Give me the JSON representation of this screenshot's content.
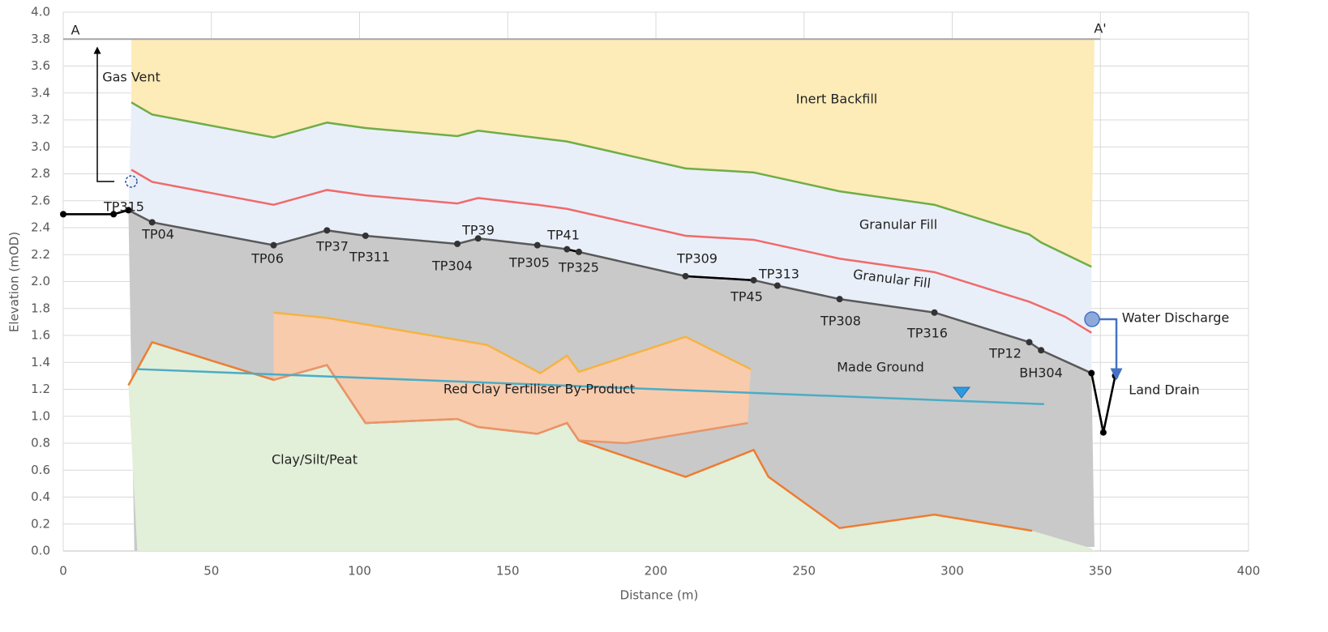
{
  "chart_data": {
    "type": "line",
    "xlabel": "Distance (m)",
    "ylabel": "Elevation (mOD)",
    "xlim": [
      0,
      400
    ],
    "ylim": [
      0,
      4
    ],
    "xticks": [
      0,
      50,
      100,
      150,
      200,
      250,
      300,
      350,
      400
    ],
    "yticks": [
      {
        "value": 0,
        "label": "0.0"
      },
      0.2,
      0.4,
      0.6,
      0.8,
      {
        "value": 1,
        "label": "1.0"
      },
      1.2,
      1.4,
      1.6,
      1.8,
      {
        "value": 2,
        "label": "2.0"
      },
      2.2,
      2.4,
      2.6,
      2.8,
      {
        "value": 3,
        "label": "3.0"
      },
      3.2,
      3.4,
      3.6,
      3.8,
      {
        "value": 4,
        "label": "4.0"
      }
    ],
    "grid": true,
    "series": [
      {
        "color": "#a6a6a6",
        "x": [
          0,
          350
        ],
        "values": [
          3.8,
          3.8
        ]
      },
      {
        "color": "#70ad47",
        "x": [
          23,
          30,
          71,
          89,
          102,
          133,
          140,
          170,
          210,
          233,
          262,
          294,
          326,
          330,
          347
        ],
        "values": [
          3.33,
          3.24,
          3.07,
          3.18,
          3.14,
          3.08,
          3.12,
          3.04,
          2.84,
          2.81,
          2.67,
          2.57,
          2.35,
          2.29,
          2.11
        ]
      },
      {
        "color": "#f06a6a",
        "x": [
          23,
          30,
          71,
          89,
          102,
          133,
          140,
          160,
          170,
          210,
          233,
          262,
          294,
          326,
          338,
          347
        ],
        "values": [
          2.83,
          2.74,
          2.57,
          2.68,
          2.64,
          2.58,
          2.62,
          2.57,
          2.54,
          2.34,
          2.31,
          2.17,
          2.07,
          1.85,
          1.74,
          1.62
        ]
      },
      {
        "color": "#595959",
        "x": [
          0,
          17,
          22,
          30,
          71,
          89,
          102,
          133,
          140,
          160,
          170,
          174,
          210,
          233,
          241,
          262,
          294,
          326,
          330,
          347,
          351,
          355
        ],
        "values": [
          2.5,
          2.5,
          2.53,
          2.44,
          2.27,
          2.38,
          2.34,
          2.28,
          2.32,
          2.27,
          2.24,
          2.22,
          2.04,
          2.01,
          1.97,
          1.87,
          1.77,
          1.55,
          1.49,
          1.32,
          0.88,
          1.3
        ],
        "point_labels": [
          null,
          null,
          "TP315",
          "TP04",
          "TP06",
          "TP37",
          "TP311",
          "TP304",
          "TP39",
          "TP305",
          "TP41",
          "TP325",
          "TP309",
          "TP45",
          "TP313",
          "TP308",
          "TP316",
          "TP12",
          "BH304",
          null,
          null,
          null
        ]
      },
      {
        "color": "#ed7d31",
        "x": [
          22,
          30,
          71,
          89,
          102,
          133,
          140,
          160,
          170,
          174,
          210,
          233,
          238,
          262,
          294,
          327
        ],
        "values": [
          1.23,
          1.55,
          1.27,
          1.38,
          0.95,
          0.98,
          0.92,
          0.87,
          0.95,
          0.82,
          0.55,
          0.75,
          0.55,
          0.17,
          0.27,
          0.15
        ]
      },
      {
        "color": "#f5b342",
        "x": [
          71,
          89,
          143,
          161,
          170,
          174,
          210,
          232
        ],
        "values": [
          1.77,
          1.73,
          1.53,
          1.32,
          1.45,
          1.33,
          1.59,
          1.35
        ]
      },
      {
        "color": "#e8956a",
        "x": [
          71,
          89,
          102,
          133,
          140,
          160,
          170,
          174,
          190,
          231
        ],
        "values": [
          1.27,
          1.38,
          0.95,
          0.98,
          0.92,
          0.87,
          0.95,
          0.82,
          0.8,
          0.95
        ]
      },
      {
        "color": "#4bacc6",
        "x": [
          25,
          331
        ],
        "values": [
          1.35,
          1.09
        ]
      }
    ],
    "annotations": [
      "Inert Backfill",
      "Granular Fill",
      "Granular Fill",
      "Made Ground",
      "Red Clay Fertiliser By-Product",
      "Clay/Silt/Peat",
      "Gas Vent",
      "Water Discharge",
      "Land Drain",
      "A",
      "A'"
    ]
  }
}
